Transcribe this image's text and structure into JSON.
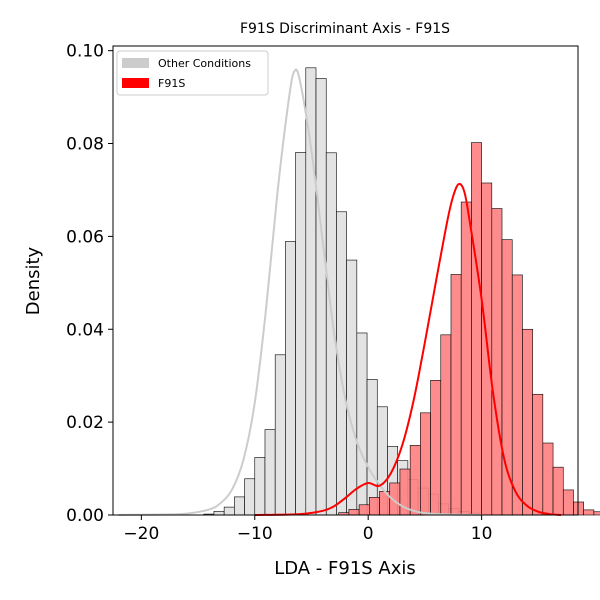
{
  "chart_data": {
    "type": "histogram",
    "title": "F91S Discriminant Axis - F91S",
    "xlabel": "LDA - F91S Axis",
    "ylabel": "Density",
    "xlim": [
      -22.5,
      18.5
    ],
    "ylim": [
      0,
      0.101
    ],
    "x_ticks": [
      -20,
      -10,
      0,
      10
    ],
    "x_tick_labels": [
      "−20",
      "−10",
      "0",
      "10"
    ],
    "y_ticks": [
      0,
      0.02,
      0.04,
      0.06,
      0.08,
      0.1
    ],
    "y_tick_labels": [
      "0.00",
      "0.02",
      "0.04",
      "0.06",
      "0.08",
      "0.10"
    ],
    "legend_position": "top-left",
    "grid": false,
    "series": [
      {
        "name": "Other Conditions",
        "color": "#cccccc",
        "fill": "#e3e3e3",
        "kde_color": "#cccccc",
        "bin_start": -14.5,
        "bin_width": 0.9,
        "densities": [
          0.0002,
          0.0008,
          0.0017,
          0.0039,
          0.0078,
          0.0124,
          0.0184,
          0.0345,
          0.0589,
          0.0781,
          0.0963,
          0.094,
          0.078,
          0.0653,
          0.0549,
          0.0392,
          0.0292,
          0.0233,
          0.0148,
          0.0117,
          0.0076,
          0.0058,
          0.0045,
          0.0024,
          0.0014,
          0.0008,
          0.0004
        ],
        "kde_x": [
          -22,
          -18,
          -16,
          -14,
          -13,
          -12,
          -11,
          -10,
          -9,
          -8,
          -7,
          -6.5,
          -6,
          -5,
          -4,
          -3,
          -2,
          -1,
          0,
          1,
          2,
          3,
          4,
          5,
          7,
          10
        ],
        "kde_y": [
          0.0,
          0.0001,
          0.0003,
          0.0012,
          0.0026,
          0.0055,
          0.0119,
          0.0242,
          0.0445,
          0.0694,
          0.0895,
          0.0956,
          0.0933,
          0.0784,
          0.0588,
          0.0391,
          0.0248,
          0.0158,
          0.0103,
          0.0065,
          0.0037,
          0.0019,
          0.0009,
          0.0004,
          0.0001,
          0.0
        ]
      },
      {
        "name": "F91S",
        "color": "#ff0000",
        "fill": "#ff8080",
        "kde_color": "#ff0000",
        "bin_start": -2.6,
        "bin_width": 0.9,
        "densities": [
          0.0005,
          0.0012,
          0.0022,
          0.0038,
          0.0051,
          0.0069,
          0.0099,
          0.015,
          0.022,
          0.029,
          0.0388,
          0.0518,
          0.0674,
          0.0802,
          0.0715,
          0.066,
          0.0593,
          0.0517,
          0.04,
          0.026,
          0.0155,
          0.0103,
          0.0054,
          0.0028,
          0.0011,
          0.0007
        ],
        "kde_x": [
          -10,
          -6,
          -4,
          -3,
          -2,
          -1,
          0,
          1,
          2,
          3,
          4,
          5,
          6,
          7,
          7.5,
          8,
          8.5,
          9,
          10,
          11,
          12,
          13,
          14,
          15,
          16,
          17
        ],
        "kde_y": [
          0.0,
          0.0002,
          0.0009,
          0.0019,
          0.0037,
          0.0057,
          0.0069,
          0.0063,
          0.009,
          0.015,
          0.0246,
          0.0372,
          0.0506,
          0.0636,
          0.0687,
          0.0713,
          0.0694,
          0.0625,
          0.0465,
          0.0265,
          0.012,
          0.005,
          0.002,
          0.0007,
          0.0002,
          0.0
        ]
      }
    ]
  }
}
